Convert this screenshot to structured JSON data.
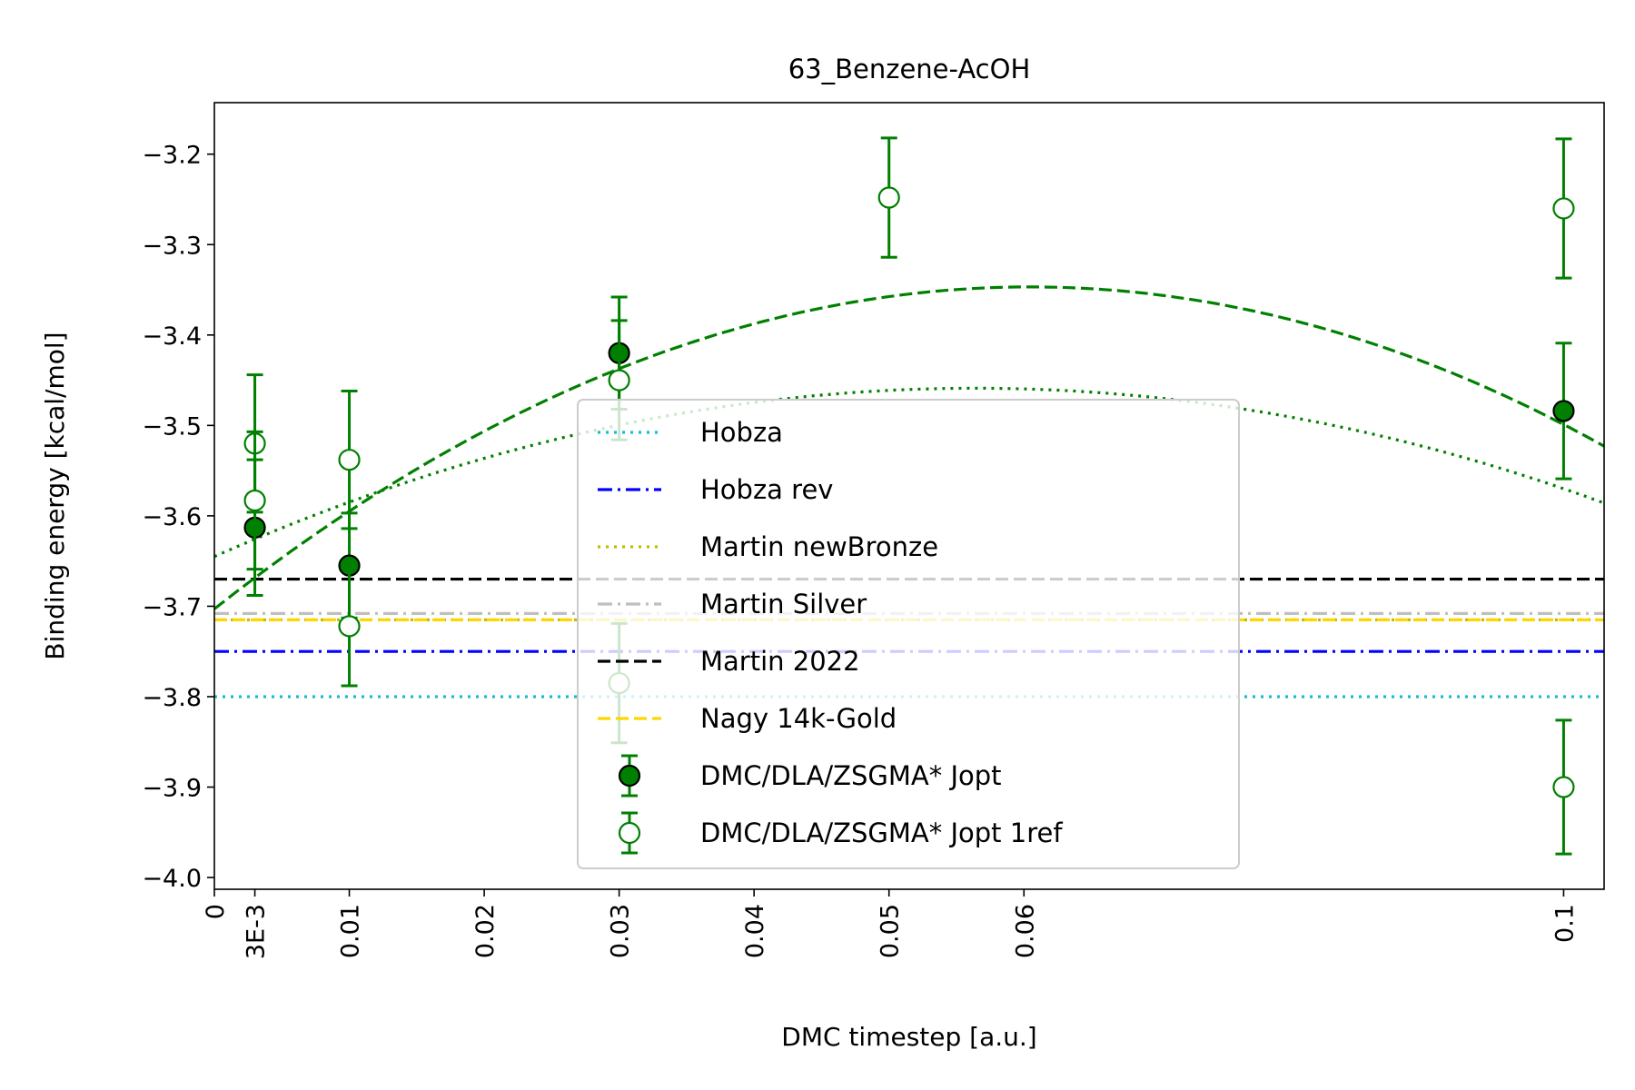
{
  "chart_data": {
    "type": "scatter",
    "title": "63_Benzene-AcOH",
    "xlabel": "DMC timestep [a.u.]",
    "ylabel": "Binding energy [kcal/mol]",
    "xlim": [
      0,
      0.103
    ],
    "ylim": [
      -4.013,
      -3.143
    ],
    "x_ticks": [
      {
        "value": 0,
        "label": "0"
      },
      {
        "value": 0.003,
        "label": "3E-3"
      },
      {
        "value": 0.01,
        "label": "0.01"
      },
      {
        "value": 0.02,
        "label": "0.02"
      },
      {
        "value": 0.03,
        "label": "0.03"
      },
      {
        "value": 0.04,
        "label": "0.04"
      },
      {
        "value": 0.05,
        "label": "0.05"
      },
      {
        "value": 0.06,
        "label": "0.06"
      },
      {
        "value": 0.1,
        "label": "0.1"
      }
    ],
    "y_ticks": [
      {
        "value": -3.2,
        "label": "−3.2"
      },
      {
        "value": -3.3,
        "label": "−3.3"
      },
      {
        "value": -3.4,
        "label": "−3.4"
      },
      {
        "value": -3.5,
        "label": "−3.5"
      },
      {
        "value": -3.6,
        "label": "−3.6"
      },
      {
        "value": -3.7,
        "label": "−3.7"
      },
      {
        "value": -3.8,
        "label": "−3.8"
      },
      {
        "value": -3.9,
        "label": "−3.9"
      },
      {
        "value": -4.0,
        "label": "−4.0"
      }
    ],
    "reference_lines": [
      {
        "name": "Hobza",
        "y": -3.8,
        "color": "#17becf",
        "style": "dotted"
      },
      {
        "name": "Hobza rev",
        "y": -3.75,
        "color": "#0000ff",
        "style": "dashdot"
      },
      {
        "name": "Martin newBronze",
        "y": -3.715,
        "color": "#bfbf00",
        "style": "dotted"
      },
      {
        "name": "Martin Silver",
        "y": -3.708,
        "color": "#bfbfbf",
        "style": "dashdot"
      },
      {
        "name": "Martin 2022",
        "y": -3.67,
        "color": "#000000",
        "style": "dashed"
      },
      {
        "name": "Nagy 14k-Gold",
        "y": -3.715,
        "color": "#ffd700",
        "style": "dashed"
      }
    ],
    "series": [
      {
        "name": "DMC/DLA/ZSGMA* Jopt",
        "marker": "filled",
        "color": "#008000",
        "points": [
          {
            "x": 0.003,
            "y": -3.613,
            "err": 0.075
          },
          {
            "x": 0.01,
            "y": -3.655,
            "err": 0.058
          },
          {
            "x": 0.03,
            "y": -3.42,
            "err": 0.062
          },
          {
            "x": 0.1,
            "y": -3.484,
            "err": 0.075
          }
        ]
      },
      {
        "name": "DMC/DLA/ZSGMA* Jopt 1ref",
        "marker": "open",
        "color": "#008000",
        "points": [
          {
            "x": 0.003,
            "y": -3.52,
            "err": 0.076
          },
          {
            "x": 0.003,
            "y": -3.583,
            "err": 0.076
          },
          {
            "x": 0.01,
            "y": -3.538,
            "err": 0.076
          },
          {
            "x": 0.01,
            "y": -3.722,
            "err": 0.066
          },
          {
            "x": 0.03,
            "y": -3.45,
            "err": 0.066
          },
          {
            "x": 0.03,
            "y": -3.785,
            "err": 0.066
          },
          {
            "x": 0.05,
            "y": -3.248,
            "err": 0.066
          },
          {
            "x": 0.1,
            "y": -3.26,
            "err": 0.077
          },
          {
            "x": 0.1,
            "y": -3.9,
            "err": 0.074
          }
        ]
      }
    ],
    "fits": [
      {
        "color": "#008000",
        "style": "dashed",
        "a": -3.703,
        "b": 11.78,
        "c": -97.4
      },
      {
        "color": "#008000",
        "style": "dotted",
        "a": -3.645,
        "b": 6.6,
        "c": -58.5
      }
    ],
    "legend": {
      "placement": "center",
      "entries": [
        "Hobza",
        "Hobza rev",
        "Martin newBronze",
        "Martin Silver",
        "Martin 2022",
        "Nagy 14k-Gold",
        "DMC/DLA/ZSGMA* Jopt",
        "DMC/DLA/ZSGMA* Jopt 1ref"
      ]
    },
    "grid": false
  }
}
